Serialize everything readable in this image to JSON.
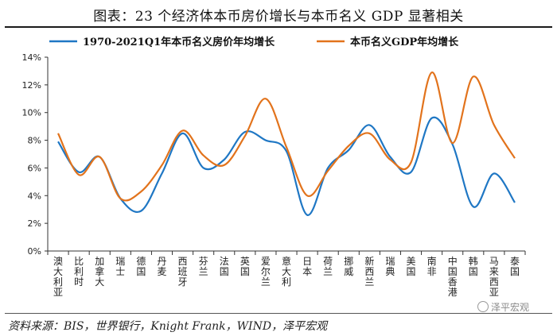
{
  "header": {
    "title": "图表：23 个经济体本币房价增长与本币名义 GDP 显著相关"
  },
  "footer": {
    "source": "资料来源：BIS，世界银行，Knight Frank，WIND，泽平宏观",
    "watermark": "泽平宏观"
  },
  "colors": {
    "series1": "#1f77c4",
    "series2": "#e2731c"
  },
  "chart_data": {
    "type": "line",
    "title": "",
    "xlabel": "",
    "ylabel": "",
    "ylim": [
      0,
      14
    ],
    "yticks": [
      "0%",
      "2%",
      "4%",
      "6%",
      "8%",
      "10%",
      "12%",
      "14%"
    ],
    "ytick_values": [
      0,
      2,
      4,
      6,
      8,
      10,
      12,
      14
    ],
    "grid": false,
    "legend": "top",
    "categories": [
      "澳大利亚",
      "比利时",
      "加拿大",
      "瑞士",
      "德国",
      "丹麦",
      "西班牙",
      "芬兰",
      "法国",
      "英国",
      "爱尔兰",
      "意大利",
      "日本",
      "荷兰",
      "挪威",
      "新西兰",
      "瑞典",
      "美国",
      "南非",
      "中国香港",
      "韩国",
      "马来西亚",
      "泰国"
    ],
    "series": [
      {
        "name": "1970-2021Q1年本币名义房价年均增长",
        "values": [
          7.9,
          5.7,
          6.8,
          3.8,
          2.9,
          5.6,
          8.5,
          6.0,
          6.6,
          8.6,
          8.0,
          7.2,
          2.6,
          6.0,
          7.3,
          9.1,
          6.8,
          5.7,
          9.6,
          7.7,
          3.2,
          5.6,
          3.5
        ]
      },
      {
        "name": "本币名义GDP年均增长",
        "values": [
          8.5,
          5.5,
          6.8,
          3.8,
          4.3,
          6.2,
          8.7,
          6.9,
          6.2,
          8.3,
          11.0,
          7.5,
          4.0,
          5.8,
          7.6,
          8.5,
          6.6,
          6.4,
          12.9,
          7.8,
          12.6,
          9.1,
          6.7
        ]
      }
    ]
  }
}
